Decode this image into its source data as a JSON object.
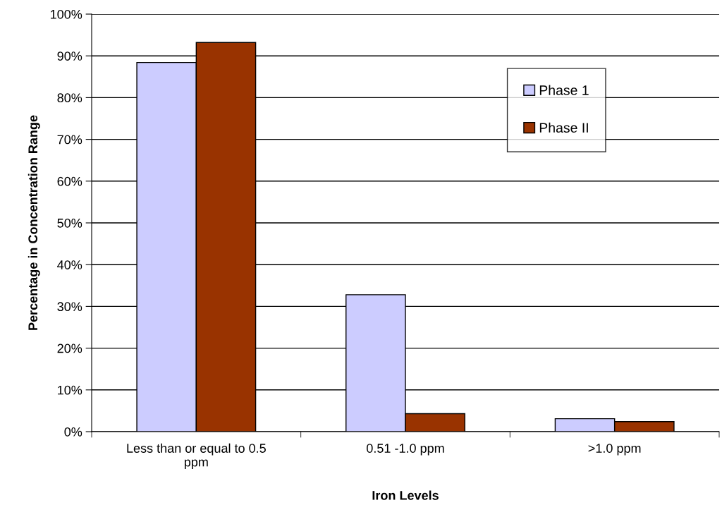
{
  "chart_data": {
    "type": "bar",
    "xlabel": "Iron Levels",
    "ylabel": "Percentage in Concentration Range",
    "categories": [
      "Less than or equal to 0.5\nppm",
      "0.51 -1.0 ppm",
      ">1.0 ppm"
    ],
    "series": [
      {
        "name": "Phase 1",
        "color": "#ccccff",
        "values": [
          88.4,
          32.8,
          3.1
        ]
      },
      {
        "name": "Phase II",
        "color": "#993300",
        "values": [
          93.2,
          4.3,
          2.4
        ]
      }
    ],
    "ylim": [
      0,
      100
    ],
    "yticks": [
      {
        "value": 0,
        "label": "0%"
      },
      {
        "value": 10,
        "label": "10%"
      },
      {
        "value": 20,
        "label": "20%"
      },
      {
        "value": 30,
        "label": "30%"
      },
      {
        "value": 40,
        "label": "40%"
      },
      {
        "value": 50,
        "label": "50%"
      },
      {
        "value": 60,
        "label": "60%"
      },
      {
        "value": 70,
        "label": "70%"
      },
      {
        "value": 80,
        "label": "80%"
      },
      {
        "value": 90,
        "label": "90%"
      },
      {
        "value": 100,
        "label": "100%"
      }
    ],
    "grid": "y",
    "legend": "right"
  }
}
